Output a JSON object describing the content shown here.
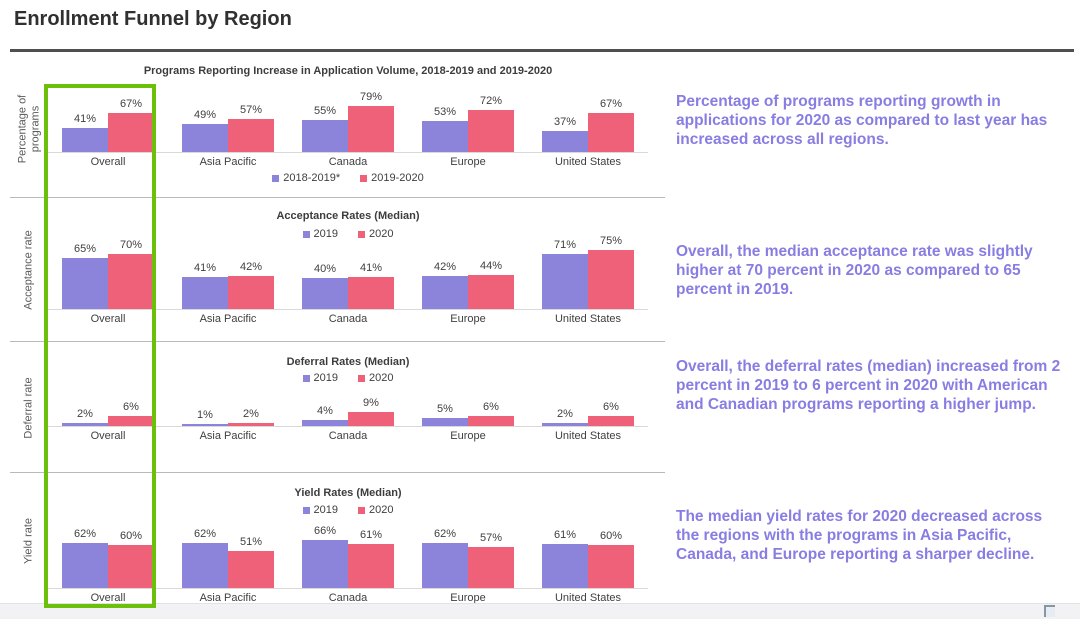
{
  "page": {
    "title": "Enrollment Funnel by Region"
  },
  "colors": {
    "series_purple": "#8c84da",
    "series_pink": "#ee6179",
    "highlight_box": "#6cc00a",
    "annotation_text": "#877de2"
  },
  "chart_data": [
    {
      "type": "bar",
      "id": "applications",
      "title": "Programs Reporting Increase in Application Volume, 2018-2019 and 2019-2020",
      "row_label": "Percentage of programs",
      "unit": "%",
      "categories": [
        "Overall",
        "Asia Pacific",
        "Canada",
        "Europe",
        "United States"
      ],
      "series": [
        {
          "name": "2018-2019*",
          "values": [
            41,
            49,
            55,
            53,
            37
          ]
        },
        {
          "name": "2019-2020",
          "values": [
            67,
            57,
            79,
            72,
            67
          ]
        }
      ],
      "legend_position": "bottom",
      "ylim": [
        0,
        80
      ],
      "grid": false,
      "annotation": "Percentage of programs reporting growth in applications for 2020 as compared to last year has increased across all regions."
    },
    {
      "type": "bar",
      "id": "acceptance",
      "title": "Acceptance Rates (Median)",
      "row_label": "Acceptance rate",
      "unit": "%",
      "categories": [
        "Overall",
        "Asia Pacific",
        "Canada",
        "Europe",
        "United States"
      ],
      "series": [
        {
          "name": "2019",
          "values": [
            65,
            41,
            40,
            42,
            71
          ]
        },
        {
          "name": "2020",
          "values": [
            70,
            42,
            41,
            44,
            75
          ]
        }
      ],
      "legend_position": "top",
      "ylim": [
        0,
        80
      ],
      "grid": false,
      "annotation": "Overall, the median acceptance rate was slightly higher at 70 percent in 2020 as compared to 65 percent in 2019."
    },
    {
      "type": "bar",
      "id": "deferral",
      "title": "Deferral Rates (Median)",
      "row_label": "Deferral rate",
      "unit": "%",
      "categories": [
        "Overall",
        "Asia Pacific",
        "Canada",
        "Europe",
        "United States"
      ],
      "series": [
        {
          "name": "2019",
          "values": [
            2,
            1,
            4,
            5,
            2
          ]
        },
        {
          "name": "2020",
          "values": [
            6,
            2,
            9,
            6,
            6
          ]
        }
      ],
      "legend_position": "top",
      "ylim": [
        0,
        10
      ],
      "grid": false,
      "annotation": "Overall, the deferral rates (median) increased from 2 percent in 2019 to 6 percent in 2020 with American and Canadian programs reporting a higher jump."
    },
    {
      "type": "bar",
      "id": "yield",
      "title": "Yield Rates (Median)",
      "row_label": "Yield rate",
      "unit": "%",
      "categories": [
        "Overall",
        "Asia Pacific",
        "Canada",
        "Europe",
        "United States"
      ],
      "series": [
        {
          "name": "2019",
          "values": [
            62,
            62,
            66,
            62,
            61
          ]
        },
        {
          "name": "2020",
          "values": [
            60,
            51,
            61,
            57,
            60
          ]
        }
      ],
      "legend_position": "top",
      "ylim": [
        0,
        70
      ],
      "grid": false,
      "annotation": "The median yield rates for 2020 decreased across the regions with the programs in Asia Pacific, Canada, and Europe reporting a sharper decline."
    }
  ]
}
